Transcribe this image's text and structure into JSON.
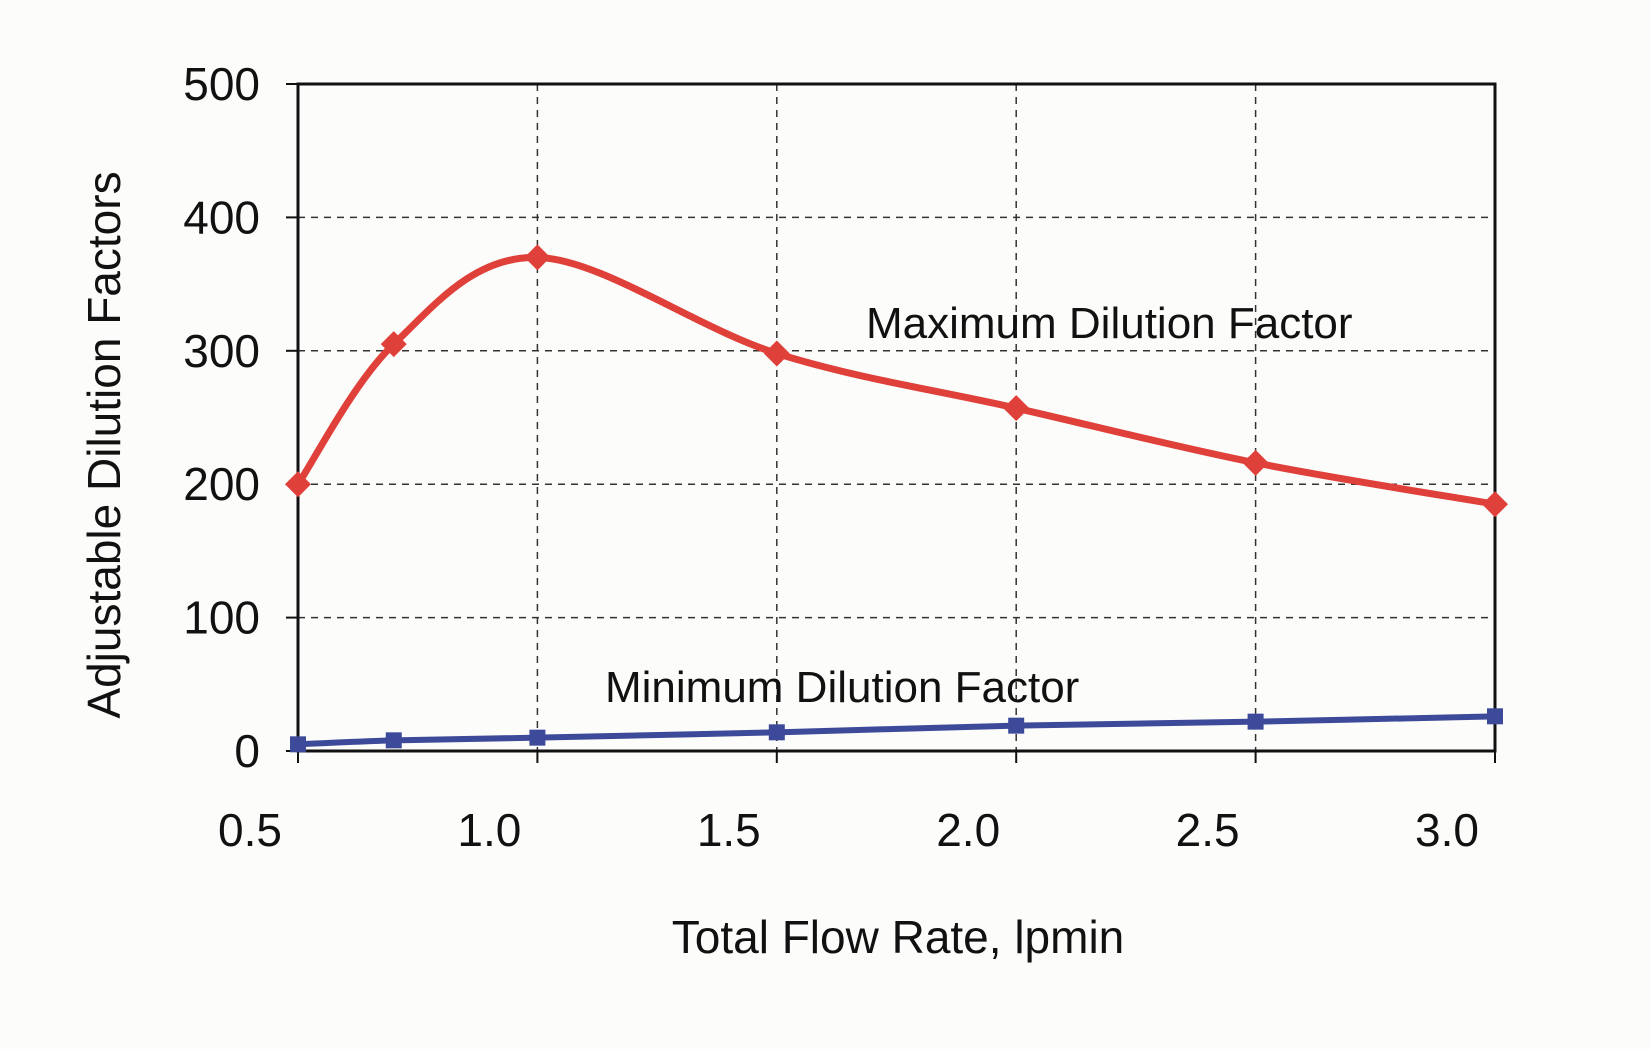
{
  "chart_data": {
    "type": "line",
    "title": "",
    "xlabel": "Total Flow Rate, lpmin",
    "ylabel": "Adjustable Dilution Factors",
    "xlim": [
      0.5,
      3.0
    ],
    "ylim": [
      0,
      500
    ],
    "xticks": [
      "0.5",
      "1.0",
      "1.5",
      "2.0",
      "2.5",
      "3.0"
    ],
    "yticks": [
      "0",
      "100",
      "200",
      "300",
      "400",
      "500"
    ],
    "grid": true,
    "series": [
      {
        "name": "Maximum Dilution Factor",
        "color": "#e0403a",
        "marker": "diamond",
        "x": [
          0.5,
          0.7,
          1.0,
          1.5,
          2.0,
          2.5,
          3.0
        ],
        "y": [
          200,
          305,
          370,
          298,
          257,
          216,
          185
        ]
      },
      {
        "name": "Minimum Dilution Factor",
        "color": "#3d4a9a",
        "marker": "square",
        "x": [
          0.5,
          0.7,
          1.0,
          1.5,
          2.0,
          2.5,
          3.0
        ],
        "y": [
          5,
          8,
          10,
          14,
          19,
          22,
          26
        ]
      }
    ]
  }
}
